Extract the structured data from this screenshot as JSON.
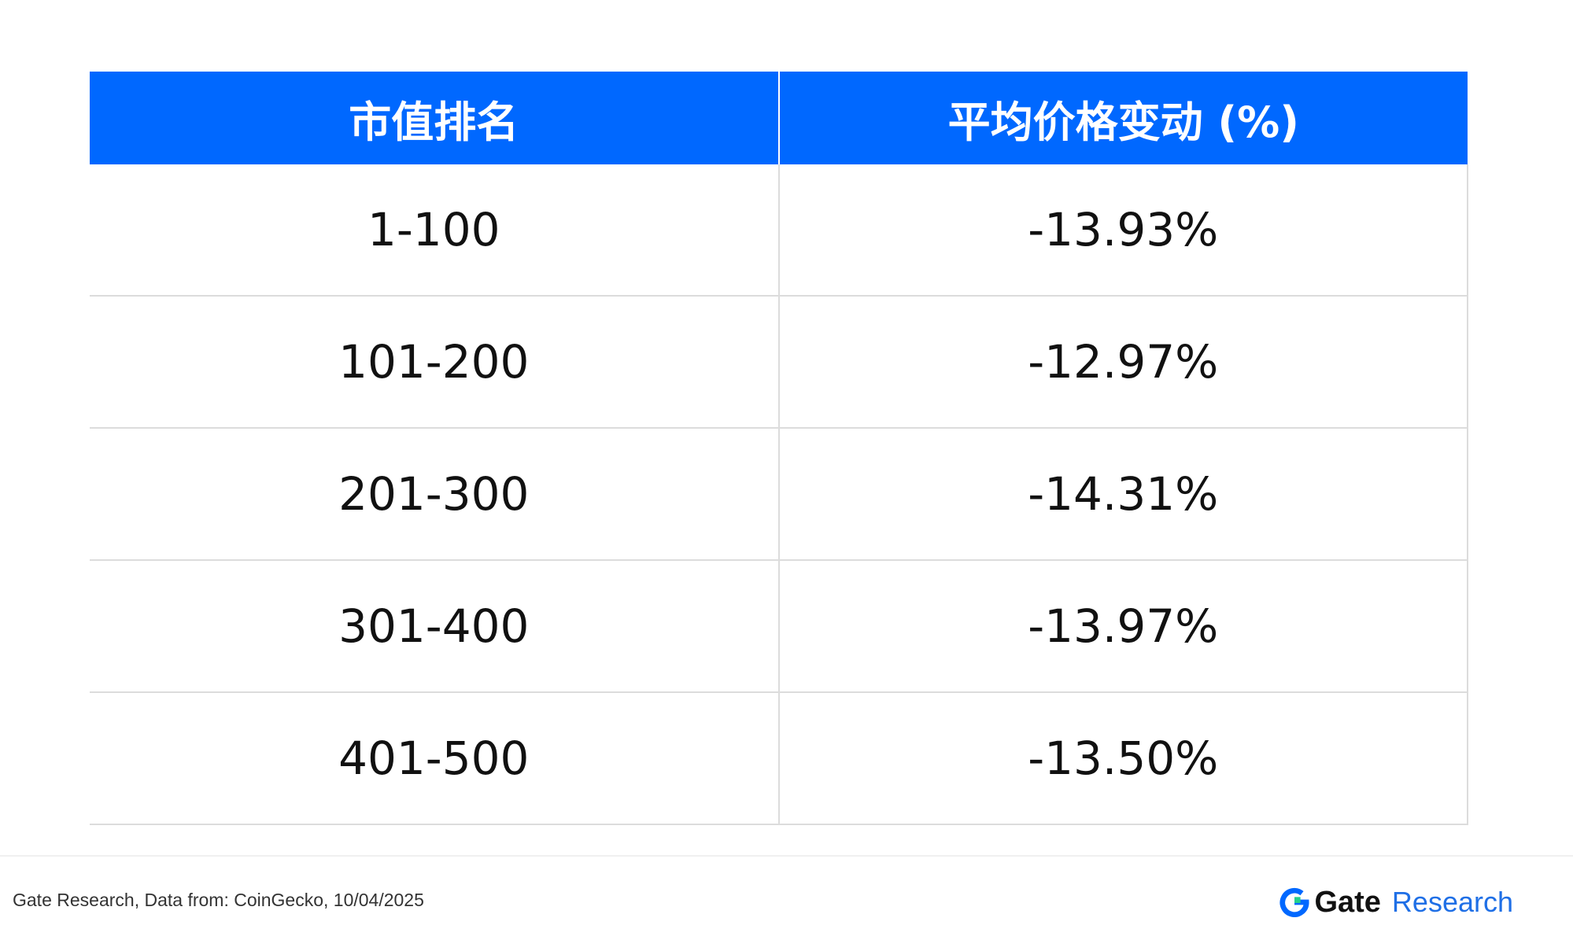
{
  "chart_data": {
    "type": "table",
    "columns": [
      "市值排名",
      "平均价格变动 (%)"
    ],
    "rows": [
      [
        "1-100",
        "-13.93%"
      ],
      [
        "101-200",
        "-12.97%"
      ],
      [
        "201-300",
        "-14.31%"
      ],
      [
        "301-400",
        "-13.97%"
      ],
      [
        "401-500",
        "-13.50%"
      ]
    ]
  },
  "footer": {
    "source": "Gate Research, Data from: CoinGecko, 10/04/2025",
    "logo_gate": "Gate",
    "logo_research": "Research"
  },
  "colors": {
    "header_bg": "#0068ff",
    "logo_blue": "#1f6fe6",
    "logo_green": "#23d18b"
  }
}
